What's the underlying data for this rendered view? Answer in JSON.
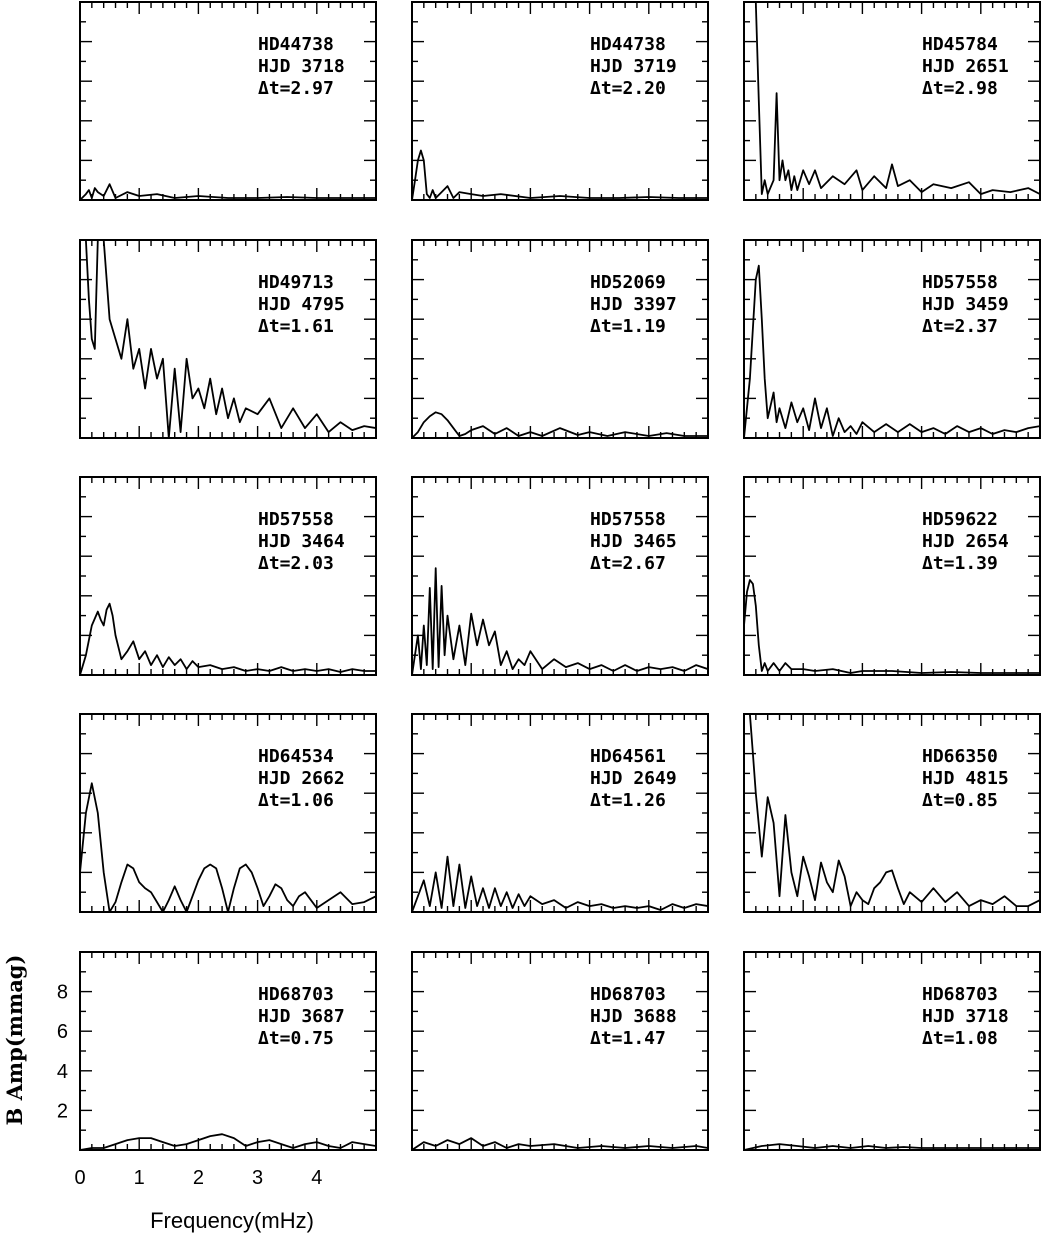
{
  "chart_data": {
    "type": "line",
    "layout": "grid",
    "xlabel": "Frequency(mHz)",
    "ylabel": "B Amp(mmag)",
    "xlim": [
      0,
      5
    ],
    "ylim": [
      0,
      10
    ],
    "xticks": [
      "0",
      "1",
      "2",
      "3",
      "4"
    ],
    "yticks": [
      "2",
      "4",
      "6",
      "8"
    ],
    "panels": [
      {
        "star": "HD44738",
        "hjd": "HJD 3718",
        "dt": "Δt=2.97",
        "x": [
          0,
          0.1,
          0.15,
          0.2,
          0.25,
          0.3,
          0.4,
          0.5,
          0.6,
          0.8,
          1.0,
          1.3,
          1.6,
          2.0,
          2.5,
          3.0,
          3.5,
          4.0,
          4.5,
          5.0
        ],
        "y": [
          0,
          0.3,
          0.5,
          0.1,
          0.6,
          0.4,
          0.2,
          0.8,
          0.1,
          0.4,
          0.2,
          0.3,
          0.1,
          0.2,
          0.1,
          0.1,
          0.15,
          0.1,
          0.1,
          0.1
        ]
      },
      {
        "star": "HD44738",
        "hjd": "HJD 3719",
        "dt": "Δt=2.20",
        "x": [
          0,
          0.05,
          0.1,
          0.15,
          0.2,
          0.25,
          0.3,
          0.35,
          0.4,
          0.5,
          0.6,
          0.7,
          0.8,
          1.0,
          1.2,
          1.5,
          2.0,
          2.5,
          3.0,
          3.5,
          4.0,
          4.5,
          5.0
        ],
        "y": [
          0,
          1.0,
          2.0,
          2.5,
          2.0,
          0.3,
          0.1,
          0.5,
          0.1,
          0.4,
          0.7,
          0.1,
          0.4,
          0.3,
          0.2,
          0.3,
          0.1,
          0.2,
          0.1,
          0.1,
          0.15,
          0.1,
          0.1
        ]
      },
      {
        "star": "HD45784",
        "hjd": "HJD 2651",
        "dt": "Δt=2.98",
        "x": [
          0,
          0.05,
          0.1,
          0.15,
          0.2,
          0.25,
          0.3,
          0.35,
          0.4,
          0.5,
          0.55,
          0.6,
          0.65,
          0.7,
          0.75,
          0.8,
          0.85,
          0.9,
          1.0,
          1.1,
          1.2,
          1.3,
          1.5,
          1.7,
          1.9,
          2.0,
          2.2,
          2.4,
          2.5,
          2.6,
          2.8,
          3.0,
          3.2,
          3.5,
          3.8,
          4.0,
          4.2,
          4.5,
          4.8,
          5.0
        ],
        "y": [
          10,
          10,
          10,
          10,
          10,
          5,
          0.3,
          1,
          0.3,
          1,
          5.4,
          1,
          2,
          1,
          1.5,
          0.5,
          1.2,
          0.5,
          1.5,
          0.8,
          1.5,
          0.6,
          1.2,
          0.8,
          1.5,
          0.5,
          1.2,
          0.6,
          1.8,
          0.7,
          1.0,
          0.4,
          0.8,
          0.6,
          0.9,
          0.3,
          0.5,
          0.4,
          0.6,
          0.3
        ]
      },
      {
        "star": "HD49713",
        "hjd": "HJD 4795",
        "dt": "Δt=1.61",
        "x": [
          0,
          0.05,
          0.1,
          0.15,
          0.2,
          0.25,
          0.3,
          0.35,
          0.4,
          0.5,
          0.6,
          0.7,
          0.8,
          0.9,
          1.0,
          1.1,
          1.2,
          1.3,
          1.4,
          1.5,
          1.6,
          1.7,
          1.8,
          1.9,
          2.0,
          2.1,
          2.2,
          2.3,
          2.4,
          2.5,
          2.6,
          2.7,
          2.8,
          3.0,
          3.2,
          3.4,
          3.6,
          3.8,
          4.0,
          4.2,
          4.4,
          4.6,
          4.8,
          5.0
        ],
        "y": [
          10,
          10,
          10,
          7,
          5,
          4.5,
          10,
          10,
          10,
          6,
          5,
          4,
          6,
          3.5,
          4.5,
          2.5,
          4.5,
          3,
          4,
          0,
          3.5,
          0.3,
          4,
          2,
          2.5,
          1.5,
          3,
          1.2,
          2.5,
          1,
          2,
          0.8,
          1.5,
          1.2,
          2,
          0.5,
          1.5,
          0.5,
          1.2,
          0.3,
          0.8,
          0.4,
          0.6,
          0.5
        ]
      },
      {
        "star": "HD52069",
        "hjd": "HJD 3397",
        "dt": "Δt=1.19",
        "x": [
          0,
          0.1,
          0.2,
          0.3,
          0.4,
          0.5,
          0.6,
          0.7,
          0.8,
          0.9,
          1.0,
          1.2,
          1.4,
          1.6,
          1.8,
          2.0,
          2.2,
          2.5,
          2.8,
          3.0,
          3.3,
          3.6,
          4.0,
          4.3,
          4.6,
          5.0
        ],
        "y": [
          0,
          0.3,
          0.8,
          1.1,
          1.3,
          1.2,
          0.9,
          0.5,
          0.1,
          0.2,
          0.4,
          0.6,
          0.2,
          0.5,
          0.1,
          0.3,
          0.1,
          0.5,
          0.15,
          0.3,
          0.1,
          0.3,
          0.1,
          0.25,
          0.1,
          0.1
        ]
      },
      {
        "star": "HD57558",
        "hjd": "HJD 3459",
        "dt": "Δt=2.37",
        "x": [
          0,
          0.1,
          0.2,
          0.25,
          0.3,
          0.35,
          0.4,
          0.5,
          0.55,
          0.6,
          0.7,
          0.8,
          0.9,
          1.0,
          1.1,
          1.2,
          1.3,
          1.4,
          1.5,
          1.6,
          1.7,
          1.8,
          1.9,
          2.0,
          2.2,
          2.4,
          2.6,
          2.8,
          3.0,
          3.2,
          3.4,
          3.6,
          3.8,
          4.0,
          4.2,
          4.4,
          4.6,
          4.8,
          5.0
        ],
        "y": [
          0,
          3,
          8,
          8.7,
          6,
          3,
          1,
          2.3,
          0.8,
          1.5,
          0.5,
          1.8,
          0.8,
          1.5,
          0.4,
          2,
          0.5,
          1.5,
          0.1,
          1.0,
          0.3,
          0.6,
          0.2,
          0.8,
          0.3,
          0.7,
          0.3,
          0.7,
          0.3,
          0.5,
          0.2,
          0.6,
          0.3,
          0.5,
          0.2,
          0.4,
          0.3,
          0.5,
          0.6
        ]
      },
      {
        "star": "HD57558",
        "hjd": "HJD 3464",
        "dt": "Δt=2.03",
        "x": [
          0,
          0.1,
          0.2,
          0.3,
          0.35,
          0.4,
          0.45,
          0.5,
          0.55,
          0.6,
          0.7,
          0.8,
          0.9,
          1.0,
          1.1,
          1.2,
          1.3,
          1.4,
          1.5,
          1.6,
          1.7,
          1.8,
          1.9,
          2.0,
          2.2,
          2.4,
          2.6,
          2.8,
          3.0,
          3.2,
          3.4,
          3.6,
          3.8,
          4.0,
          4.2,
          4.4,
          4.6,
          4.8,
          5.0
        ],
        "y": [
          0,
          1.0,
          2.5,
          3.2,
          2.8,
          2.5,
          3.3,
          3.6,
          3.0,
          2,
          0.8,
          1.2,
          1.7,
          0.8,
          1.2,
          0.5,
          1.0,
          0.4,
          0.9,
          0.5,
          0.8,
          0.3,
          0.7,
          0.4,
          0.5,
          0.3,
          0.4,
          0.2,
          0.3,
          0.2,
          0.4,
          0.2,
          0.3,
          0.2,
          0.3,
          0.15,
          0.3,
          0.2,
          0.2
        ]
      },
      {
        "star": "HD57558",
        "hjd": "HJD 3465",
        "dt": "Δt=2.67",
        "x": [
          0,
          0.1,
          0.15,
          0.2,
          0.25,
          0.3,
          0.35,
          0.4,
          0.45,
          0.5,
          0.55,
          0.6,
          0.7,
          0.8,
          0.9,
          1.0,
          1.1,
          1.2,
          1.3,
          1.4,
          1.5,
          1.6,
          1.7,
          1.8,
          1.9,
          2.0,
          2.2,
          2.4,
          2.6,
          2.8,
          3.0,
          3.2,
          3.4,
          3.6,
          3.8,
          4.0,
          4.2,
          4.4,
          4.6,
          4.8,
          5.0
        ],
        "y": [
          0,
          2,
          0.3,
          2.5,
          0.5,
          4.4,
          0.3,
          5.4,
          0.4,
          4.5,
          1,
          3,
          0.8,
          2.5,
          0.5,
          3.1,
          1.5,
          2.8,
          1.5,
          2.2,
          0.5,
          1.2,
          0.3,
          0.8,
          0.5,
          1.2,
          0.3,
          0.8,
          0.4,
          0.6,
          0.3,
          0.5,
          0.2,
          0.5,
          0.2,
          0.4,
          0.3,
          0.4,
          0.2,
          0.5,
          0.3
        ]
      },
      {
        "star": "HD59622",
        "hjd": "HJD 2654",
        "dt": "Δt=1.39",
        "x": [
          0,
          0.05,
          0.1,
          0.15,
          0.2,
          0.25,
          0.3,
          0.35,
          0.4,
          0.5,
          0.6,
          0.7,
          0.8,
          1.0,
          1.2,
          1.5,
          1.8,
          2.0,
          2.5,
          3.0,
          3.5,
          4.0,
          4.5,
          5.0
        ],
        "y": [
          2.5,
          4.2,
          4.8,
          4.6,
          3.5,
          1.5,
          0.2,
          0.6,
          0.2,
          0.6,
          0.2,
          0.6,
          0.3,
          0.3,
          0.2,
          0.3,
          0.1,
          0.2,
          0.2,
          0.1,
          0.15,
          0.1,
          0.1,
          0.1
        ]
      },
      {
        "star": "HD64534",
        "hjd": "HJD 2662",
        "dt": "Δt=1.06",
        "x": [
          0,
          0.1,
          0.2,
          0.3,
          0.4,
          0.5,
          0.6,
          0.7,
          0.8,
          0.9,
          1.0,
          1.1,
          1.2,
          1.3,
          1.4,
          1.5,
          1.6,
          1.7,
          1.8,
          1.9,
          2.0,
          2.1,
          2.2,
          2.3,
          2.4,
          2.5,
          2.6,
          2.7,
          2.8,
          2.9,
          3.0,
          3.1,
          3.2,
          3.3,
          3.4,
          3.5,
          3.6,
          3.7,
          3.8,
          3.9,
          4.0,
          4.2,
          4.4,
          4.6,
          4.8,
          5.0
        ],
        "y": [
          2,
          5,
          6.5,
          5,
          2,
          0,
          0.5,
          1.5,
          2.4,
          2.2,
          1.5,
          1.2,
          1.0,
          0.5,
          0,
          0.6,
          1.3,
          0.6,
          0,
          0.8,
          1.6,
          2.2,
          2.4,
          2.2,
          1.2,
          0,
          1.2,
          2.2,
          2.4,
          2.0,
          1.2,
          0.3,
          0.8,
          1.4,
          1.2,
          0.6,
          0.3,
          0.8,
          1.0,
          0.6,
          0.2,
          0.6,
          1.0,
          0.4,
          0.5,
          0.8
        ]
      },
      {
        "star": "HD64561",
        "hjd": "HJD 2649",
        "dt": "Δt=1.26",
        "x": [
          0,
          0.1,
          0.2,
          0.3,
          0.4,
          0.5,
          0.6,
          0.7,
          0.8,
          0.9,
          1.0,
          1.1,
          1.2,
          1.3,
          1.4,
          1.5,
          1.6,
          1.7,
          1.8,
          1.9,
          2.0,
          2.2,
          2.4,
          2.6,
          2.8,
          3.0,
          3.2,
          3.4,
          3.6,
          3.8,
          4.0,
          4.2,
          4.4,
          4.6,
          4.8,
          5.0
        ],
        "y": [
          0,
          0.8,
          1.6,
          0.3,
          2.0,
          0.2,
          2.8,
          0.3,
          2.4,
          0.2,
          1.8,
          0.3,
          1.2,
          0.2,
          1.2,
          0.3,
          1.0,
          0.2,
          0.9,
          0.3,
          0.8,
          0.4,
          0.6,
          0.2,
          0.5,
          0.3,
          0.4,
          0.2,
          0.3,
          0.2,
          0.3,
          0.1,
          0.4,
          0.2,
          0.4,
          0.3
        ]
      },
      {
        "star": "HD66350",
        "hjd": "HJD 4815",
        "dt": "Δt=0.85",
        "x": [
          0,
          0.05,
          0.1,
          0.15,
          0.2,
          0.3,
          0.4,
          0.5,
          0.6,
          0.7,
          0.8,
          0.9,
          1.0,
          1.1,
          1.2,
          1.3,
          1.4,
          1.5,
          1.6,
          1.7,
          1.8,
          1.9,
          2.0,
          2.1,
          2.2,
          2.3,
          2.4,
          2.5,
          2.6,
          2.7,
          2.8,
          3.0,
          3.2,
          3.4,
          3.6,
          3.8,
          4.0,
          4.2,
          4.4,
          4.6,
          4.8,
          5.0
        ],
        "y": [
          10,
          10,
          10,
          8,
          6,
          2.8,
          5.8,
          4.5,
          0.8,
          4.9,
          2.0,
          0.8,
          2.8,
          1.8,
          0.6,
          2.5,
          1.5,
          1.0,
          2.6,
          1.8,
          0.3,
          1.0,
          0.6,
          0.4,
          1.2,
          1.5,
          2.0,
          2.1,
          1.2,
          0.4,
          1.0,
          0.5,
          1.2,
          0.5,
          1.0,
          0.3,
          0.6,
          0.4,
          0.8,
          0.3,
          0.3,
          0.6
        ]
      },
      {
        "star": "HD68703",
        "hjd": "HJD 3687",
        "dt": "Δt=0.75",
        "x": [
          0,
          0.2,
          0.4,
          0.6,
          0.8,
          1.0,
          1.2,
          1.4,
          1.6,
          1.8,
          2.0,
          2.2,
          2.4,
          2.6,
          2.8,
          3.0,
          3.2,
          3.4,
          3.6,
          3.8,
          4.0,
          4.2,
          4.4,
          4.6,
          4.8,
          5.0
        ],
        "y": [
          0,
          0.1,
          0.1,
          0.3,
          0.5,
          0.6,
          0.6,
          0.4,
          0.2,
          0.3,
          0.5,
          0.7,
          0.8,
          0.6,
          0.2,
          0.4,
          0.5,
          0.3,
          0.1,
          0.3,
          0.4,
          0.2,
          0.1,
          0.4,
          0.3,
          0.2
        ]
      },
      {
        "star": "HD68703",
        "hjd": "HJD 3688",
        "dt": "Δt=1.47",
        "x": [
          0,
          0.2,
          0.4,
          0.6,
          0.8,
          1.0,
          1.2,
          1.4,
          1.6,
          1.8,
          2.0,
          2.4,
          2.8,
          3.2,
          3.6,
          4.0,
          4.4,
          4.8,
          5.0
        ],
        "y": [
          0,
          0.4,
          0.2,
          0.5,
          0.3,
          0.6,
          0.2,
          0.4,
          0.1,
          0.3,
          0.2,
          0.3,
          0.1,
          0.2,
          0.1,
          0.2,
          0.1,
          0.2,
          0.1
        ]
      },
      {
        "star": "HD68703",
        "hjd": "HJD 3718",
        "dt": "Δt=1.08",
        "x": [
          0,
          0.3,
          0.6,
          0.9,
          1.2,
          1.5,
          1.8,
          2.1,
          2.4,
          2.7,
          3.0,
          3.5,
          4.0,
          4.5,
          5.0
        ],
        "y": [
          0,
          0.2,
          0.3,
          0.2,
          0.1,
          0.2,
          0.1,
          0.2,
          0.1,
          0.15,
          0.1,
          0.1,
          0.1,
          0.1,
          0.1
        ]
      }
    ]
  }
}
